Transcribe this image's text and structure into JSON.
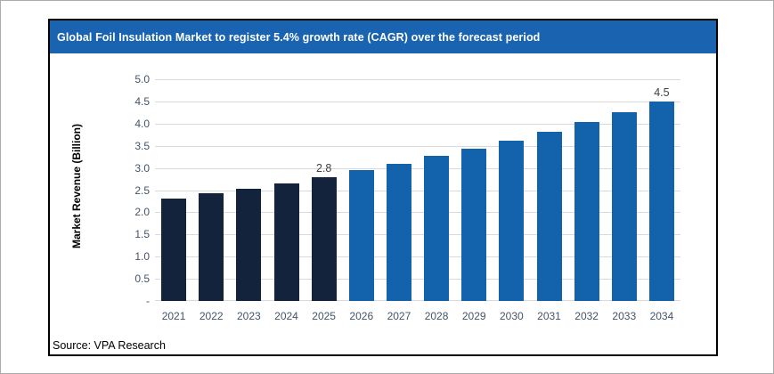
{
  "header": {
    "title": "Global Foil Insulation Market to register 5.4% growth rate (CAGR) over the forecast period",
    "background": "#1a63b0",
    "text_color": "#ffffff"
  },
  "footer": {
    "source_label": "Source: VPA Research"
  },
  "colors": {
    "panel_border": "#000000",
    "outer_border": "#ababab",
    "gridline": "#d9d9d9",
    "axis_text": "#44546a",
    "data_label_text": "#404040",
    "historical_bar": "#13233b",
    "forecast_bar": "#1262ac"
  },
  "chart_data": {
    "type": "bar",
    "title": "Global Foil Insulation Market to register 5.4% growth rate (CAGR) over the forecast period",
    "xlabel": "",
    "ylabel": "Market Revenue (Billion)",
    "ylim": [
      0,
      5
    ],
    "grid": true,
    "legend": false,
    "categories": [
      "2021",
      "2022",
      "2023",
      "2024",
      "2025",
      "2026",
      "2027",
      "2028",
      "2029",
      "2030",
      "2031",
      "2032",
      "2033",
      "2034"
    ],
    "values": [
      2.3,
      2.43,
      2.53,
      2.66,
      2.8,
      2.95,
      3.1,
      3.27,
      3.44,
      3.62,
      3.81,
      4.03,
      4.25,
      4.5
    ],
    "historical_count": 5,
    "data_labels": {
      "2025": "2.8",
      "2034": "4.5"
    },
    "yticks": [
      {
        "value": 0,
        "label": "-"
      },
      {
        "value": 0.5,
        "label": "0.5"
      },
      {
        "value": 1,
        "label": "1.0"
      },
      {
        "value": 1.5,
        "label": "1.5"
      },
      {
        "value": 2,
        "label": "2.0"
      },
      {
        "value": 2.5,
        "label": "2.5"
      },
      {
        "value": 3,
        "label": "3.0"
      },
      {
        "value": 3.5,
        "label": "3.5"
      },
      {
        "value": 4,
        "label": "4.0"
      },
      {
        "value": 4.5,
        "label": "4.5"
      },
      {
        "value": 5,
        "label": "5.0"
      }
    ]
  }
}
